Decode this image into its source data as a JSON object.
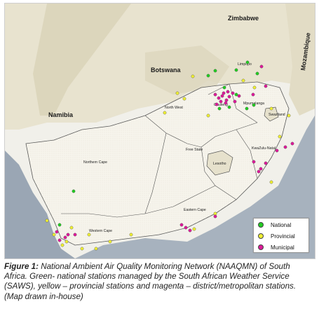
{
  "map": {
    "countries": {
      "zimbabwe": "Zimbabwe",
      "botswana": "Botswana",
      "namibia": "Namibia",
      "mozambique": "Mozambique"
    },
    "provinces": {
      "limpopo": "Limpopo",
      "north_west": "North West",
      "gauteng": "Gauteng",
      "mpumalanga": "Mpumalanga",
      "swaziland": "Swaziland",
      "free_state": "Free State",
      "kwazulu_natal": "KwaZulu-Natal",
      "lesotho": "Lesotho",
      "northern_cape": "Northern Cape",
      "eastern_cape": "Eastern Cape",
      "western_cape": "Western Cape"
    },
    "colors": {
      "national": "#22cc22",
      "provincial": "#eeee33",
      "municipal": "#dd1a99",
      "land": "#f1f0ea",
      "terrain": "#c9c3a8",
      "ocean": "#9aa6b4"
    }
  },
  "legend": {
    "national": "National",
    "provincial": "Provincial",
    "municipal": "Municipal"
  },
  "caption": {
    "label": "Figure 1:",
    "text": " National Ambient Air Quality Monitoring Network (NAAQMN) of South Africa. Green- national stations managed by the South African Weather Service (SAWS), yellow – provincial stations and magenta – district/metropolitan stations. (Map drawn in-house)"
  }
}
